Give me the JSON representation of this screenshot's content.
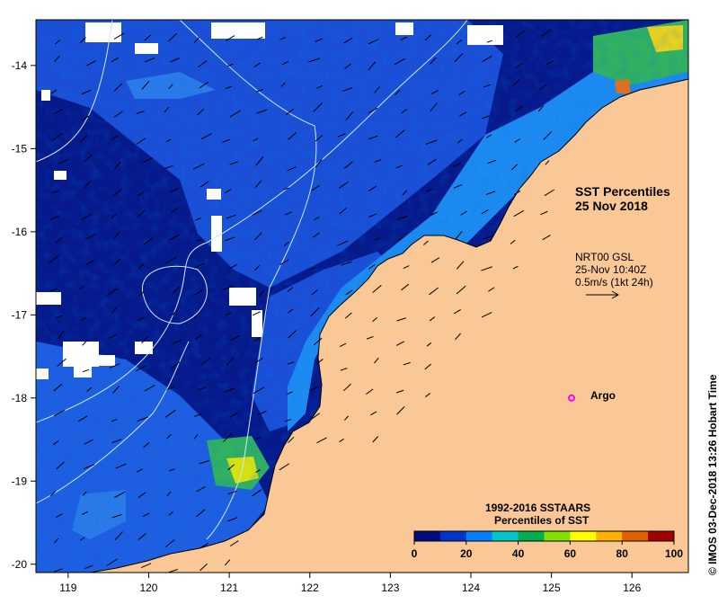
{
  "title": {
    "line1": "SST Percentiles",
    "line2": "25 Nov 2018"
  },
  "current_info": {
    "line1": "NRT00 GSL",
    "line2": "25-Nov 10:40Z",
    "line3": "0.5m/s (1kt 24h)"
  },
  "legend": {
    "title_line1": "1992-2016 SSTAARS",
    "title_line2": "Percentiles of SST",
    "ticks": [
      "0",
      "20",
      "40",
      "60",
      "80",
      "100"
    ],
    "colors": [
      "#000c80",
      "#0033cc",
      "#0080ff",
      "#00c8c8",
      "#00b050",
      "#80e000",
      "#ffff00",
      "#ffb000",
      "#e06000",
      "#a00000"
    ]
  },
  "argo": {
    "label": "Argo",
    "lon": 125.25,
    "lat": -18.0,
    "color": "#ff00ff"
  },
  "credit": "© IMOS 03-Dec-2018 13:26 Hobart Time",
  "axes": {
    "x_ticks": [
      "119",
      "120",
      "121",
      "122",
      "123",
      "124",
      "125",
      "126"
    ],
    "y_ticks": [
      "-14",
      "-15",
      "-16",
      "-17",
      "-18",
      "-19",
      "-20"
    ],
    "lon_range": [
      118.6,
      126.7
    ],
    "lat_range": [
      -20.1,
      -13.45
    ]
  },
  "colors": {
    "land": "#fac896",
    "ocean_base": "#061a8c",
    "ocean_mid": "#1a4fd6",
    "coastline": "#000000",
    "contour": "#cfe8ff"
  }
}
